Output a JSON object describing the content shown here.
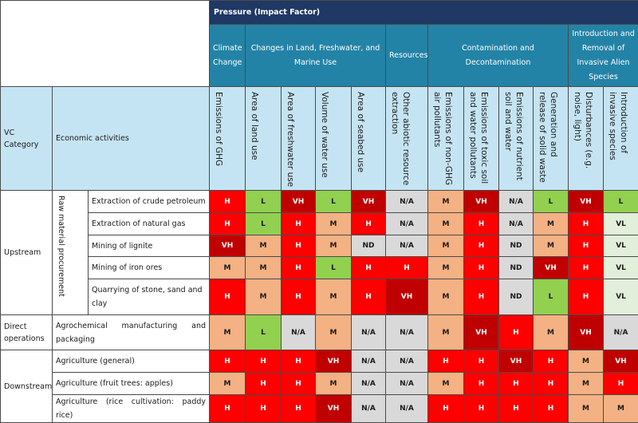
{
  "header": {
    "title": "Pressure (Impact Factor)",
    "groups": [
      {
        "label": "Climate Change",
        "columns": [
          "Emissions of GHG"
        ]
      },
      {
        "label": "Changes in Land, Freshwater, and Marine Use",
        "columns": [
          "Area of land use",
          "Area of freshwater use",
          "Volume of water use",
          "Area of seabed use"
        ]
      },
      {
        "label": "Resources",
        "columns": [
          "Other abiotic resource extraction"
        ]
      },
      {
        "label": "Contamination and Decontamination",
        "columns": [
          "Emissions of non-GHG air pollutants",
          "Emissions of toxic soil and water pollutants",
          "Emissions of nutrient soil and water",
          "Generation and release of solid waste"
        ]
      },
      {
        "label": "Introduction and Removal of Invasive Alien Species",
        "columns": [
          "Disturbances (e.g. noise, light)",
          "Introduction of invasive species"
        ]
      }
    ],
    "vc_category_label": "VC Category",
    "activities_label": "Economic activities"
  },
  "sections": [
    {
      "category": "Upstream",
      "subcategory": "Raw material procurement",
      "rows": [
        {
          "activity": "Extraction of crude petroleum",
          "ratings": [
            "H",
            "L",
            "VH",
            "L",
            "VH",
            "N/A",
            "M",
            "VH",
            "N/A",
            "L",
            "VH",
            "L"
          ]
        },
        {
          "activity": "Extraction of natural gas",
          "ratings": [
            "H",
            "L",
            "H",
            "M",
            "H",
            "N/A",
            "M",
            "H",
            "N/A",
            "M",
            "H",
            "VL"
          ]
        },
        {
          "activity": "Mining of lignite",
          "ratings": [
            "VH",
            "M",
            "H",
            "M",
            "ND",
            "N/A",
            "M",
            "H",
            "ND",
            "M",
            "H",
            "VL"
          ]
        },
        {
          "activity": "Mining of iron ores",
          "ratings": [
            "M",
            "M",
            "H",
            "L",
            "H",
            "H",
            "M",
            "H",
            "ND",
            "VH",
            "H",
            "VL"
          ]
        },
        {
          "activity": "Quarrying of stone, sand and clay",
          "ratings": [
            "H",
            "M",
            "H",
            "M",
            "H",
            "VH",
            "M",
            "H",
            "ND",
            "L",
            "H",
            "VL"
          ]
        }
      ]
    },
    {
      "category": "Direct operations",
      "rows": [
        {
          "activity": "Agrochemical manufacturing and packaging",
          "ratings": [
            "M",
            "L",
            "N/A",
            "M",
            "N/A",
            "N/A",
            "M",
            "VH",
            "H",
            "M",
            "VH",
            "N/A"
          ]
        }
      ]
    },
    {
      "category": "Downstream",
      "rows": [
        {
          "activity": "Agriculture (general)",
          "ratings": [
            "H",
            "H",
            "H",
            "VH",
            "N/A",
            "N/A",
            "H",
            "H",
            "VH",
            "H",
            "M",
            "VH"
          ]
        },
        {
          "activity": "Agriculture (fruit trees: apples)",
          "ratings": [
            "M",
            "H",
            "H",
            "M",
            "N/A",
            "N/A",
            "M",
            "H",
            "H",
            "H",
            "M",
            "H"
          ]
        },
        {
          "activity": "Agriculture (rice cultivation: paddy rice)",
          "ratings": [
            "H",
            "H",
            "H",
            "VH",
            "N/A",
            "N/A",
            "H",
            "H",
            "H",
            "H",
            "M",
            "M"
          ]
        }
      ]
    }
  ],
  "rating_colors": {
    "VH": {
      "fill": "#c00000",
      "text": "#ffffff"
    },
    "H": {
      "fill": "#ff0000",
      "text": "#ffffff"
    },
    "M": {
      "fill": "#f4b183",
      "text": "#1a1a1a"
    },
    "L": {
      "fill": "#92d050",
      "text": "#1a1a1a"
    },
    "VL": {
      "fill": "#e2efda",
      "text": "#1a1a1a"
    },
    "ND": {
      "fill": "#d9d9d9",
      "text": "#1a1a1a"
    },
    "N/A": {
      "fill": "#d9d9d9",
      "text": "#1a1a1a"
    }
  }
}
